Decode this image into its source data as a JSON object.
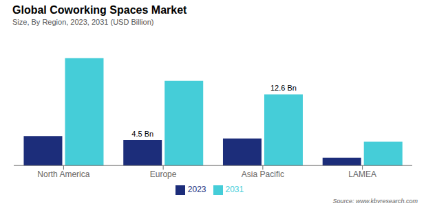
{
  "chart_data": {
    "type": "bar",
    "title": "Global Coworking Spaces Market",
    "subtitle": "Size, By Region, 2023, 2031 (USD Billion)",
    "categories": [
      "North America",
      "Europe",
      "Asia Pacific",
      "LAMEA"
    ],
    "series": [
      {
        "name": "2023",
        "color": "#1c2d7a",
        "values": [
          5.2,
          4.5,
          4.8,
          1.4
        ]
      },
      {
        "name": "2031",
        "color": "#45cdd8",
        "values": [
          19.0,
          15.0,
          12.6,
          4.2
        ]
      }
    ],
    "ylim": [
      0,
      22
    ],
    "grid": false,
    "legend": "bottom",
    "tick_labels": "x",
    "annotations": [
      {
        "category": "Europe",
        "series": "2023",
        "text": "4.5 Bn"
      },
      {
        "category": "Asia Pacific",
        "series": "2031",
        "text": "12.6 Bn"
      }
    ],
    "source": "Source: www.kbvresearch.com"
  }
}
